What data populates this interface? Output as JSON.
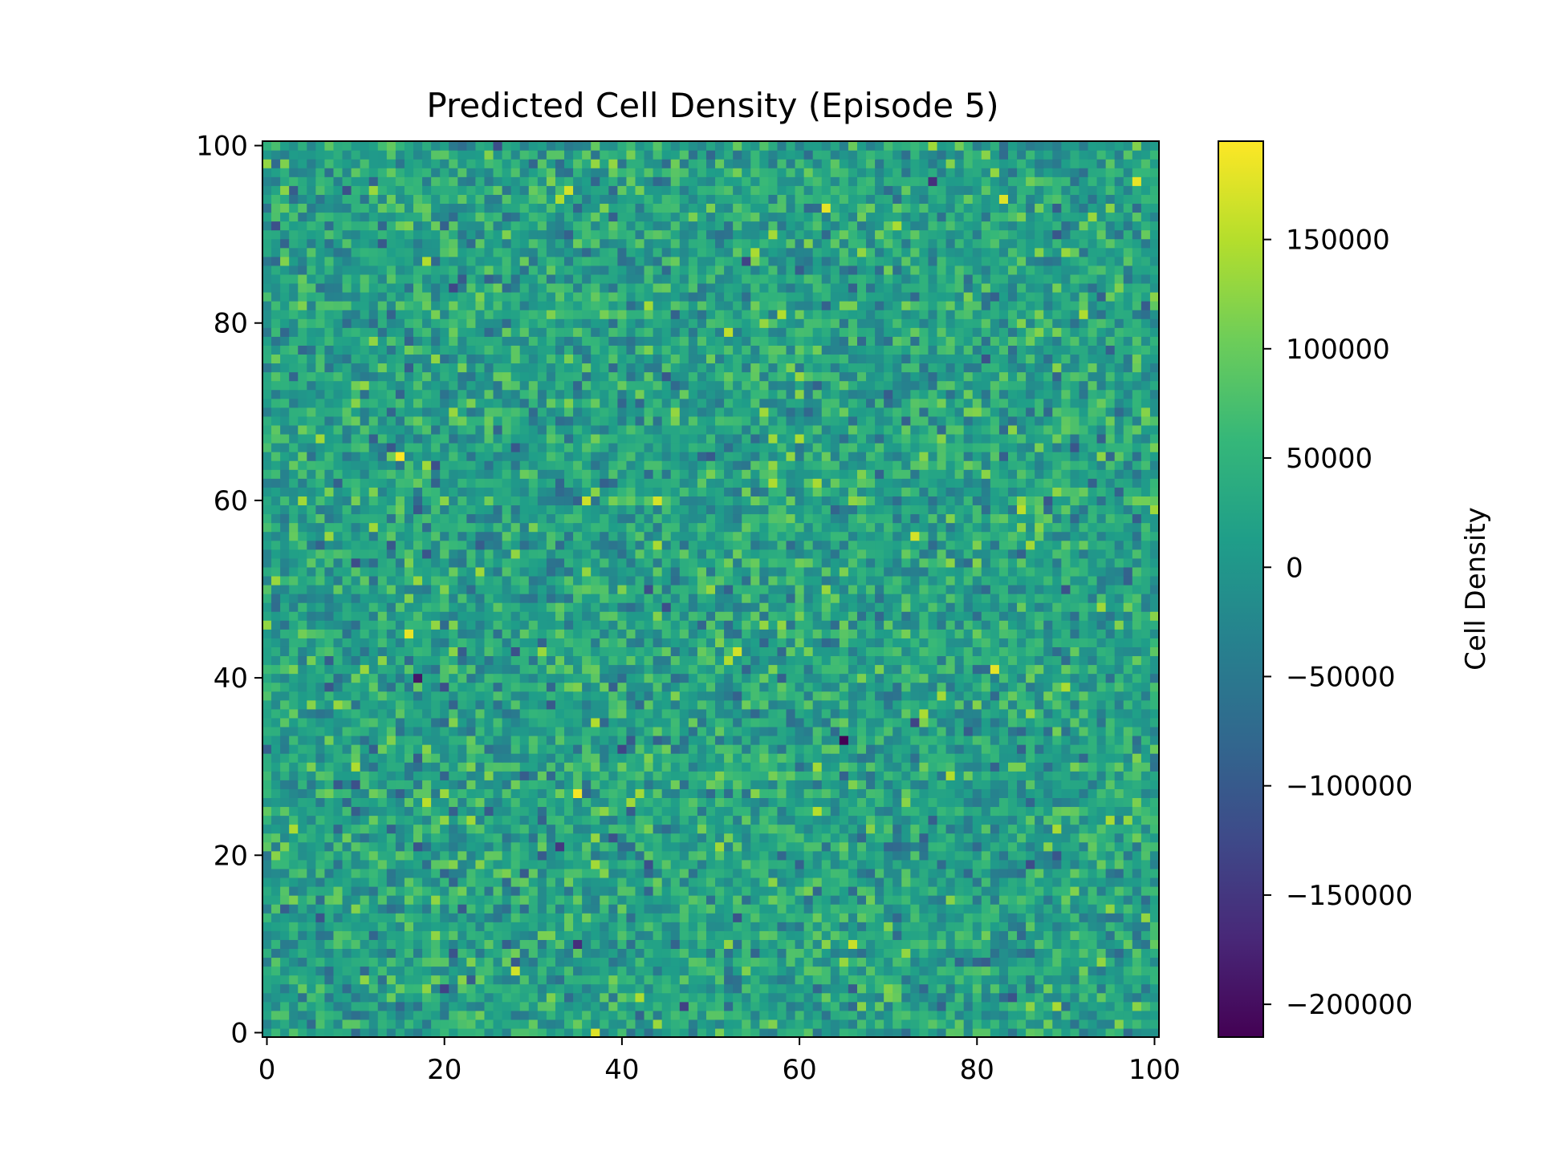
{
  "chart_data": {
    "type": "heatmap",
    "title": "Predicted Cell Density (Episode 5)",
    "xlabel": "",
    "ylabel": "",
    "grid_size": [
      101,
      101
    ],
    "xlim": [
      -0.5,
      100.5
    ],
    "ylim": [
      -0.5,
      100.5
    ],
    "x_ticks": [
      0,
      20,
      40,
      60,
      80,
      100
    ],
    "y_ticks": [
      0,
      20,
      40,
      60,
      80,
      100
    ],
    "x_tick_labels": [
      "0",
      "20",
      "40",
      "60",
      "80",
      "100"
    ],
    "y_tick_labels": [
      "0",
      "20",
      "40",
      "60",
      "80",
      "100"
    ],
    "colormap": "viridis",
    "value_range": [
      -215000,
      195000
    ],
    "value_distribution": {
      "mean": 20000,
      "std": 45000,
      "pattern": "random noise"
    },
    "notable_cells": [
      {
        "x": 35,
        "y": 27,
        "value": 190000
      },
      {
        "x": 83,
        "y": 94,
        "value": 175000
      },
      {
        "x": 44,
        "y": 60,
        "value": 170000
      },
      {
        "x": 37,
        "y": 0,
        "value": 175000
      },
      {
        "x": 65,
        "y": 33,
        "value": -215000
      },
      {
        "x": 17,
        "y": 40,
        "value": -190000
      },
      {
        "x": 75,
        "y": 96,
        "value": -160000
      }
    ],
    "colorbar": {
      "label": "Cell Density",
      "ticks": [
        150000,
        100000,
        50000,
        0,
        -50000,
        -100000,
        -150000,
        -200000
      ],
      "tick_labels": [
        "150000",
        "100000",
        "50000",
        "0",
        "−50000",
        "−100000",
        "−150000",
        "−200000"
      ]
    }
  }
}
